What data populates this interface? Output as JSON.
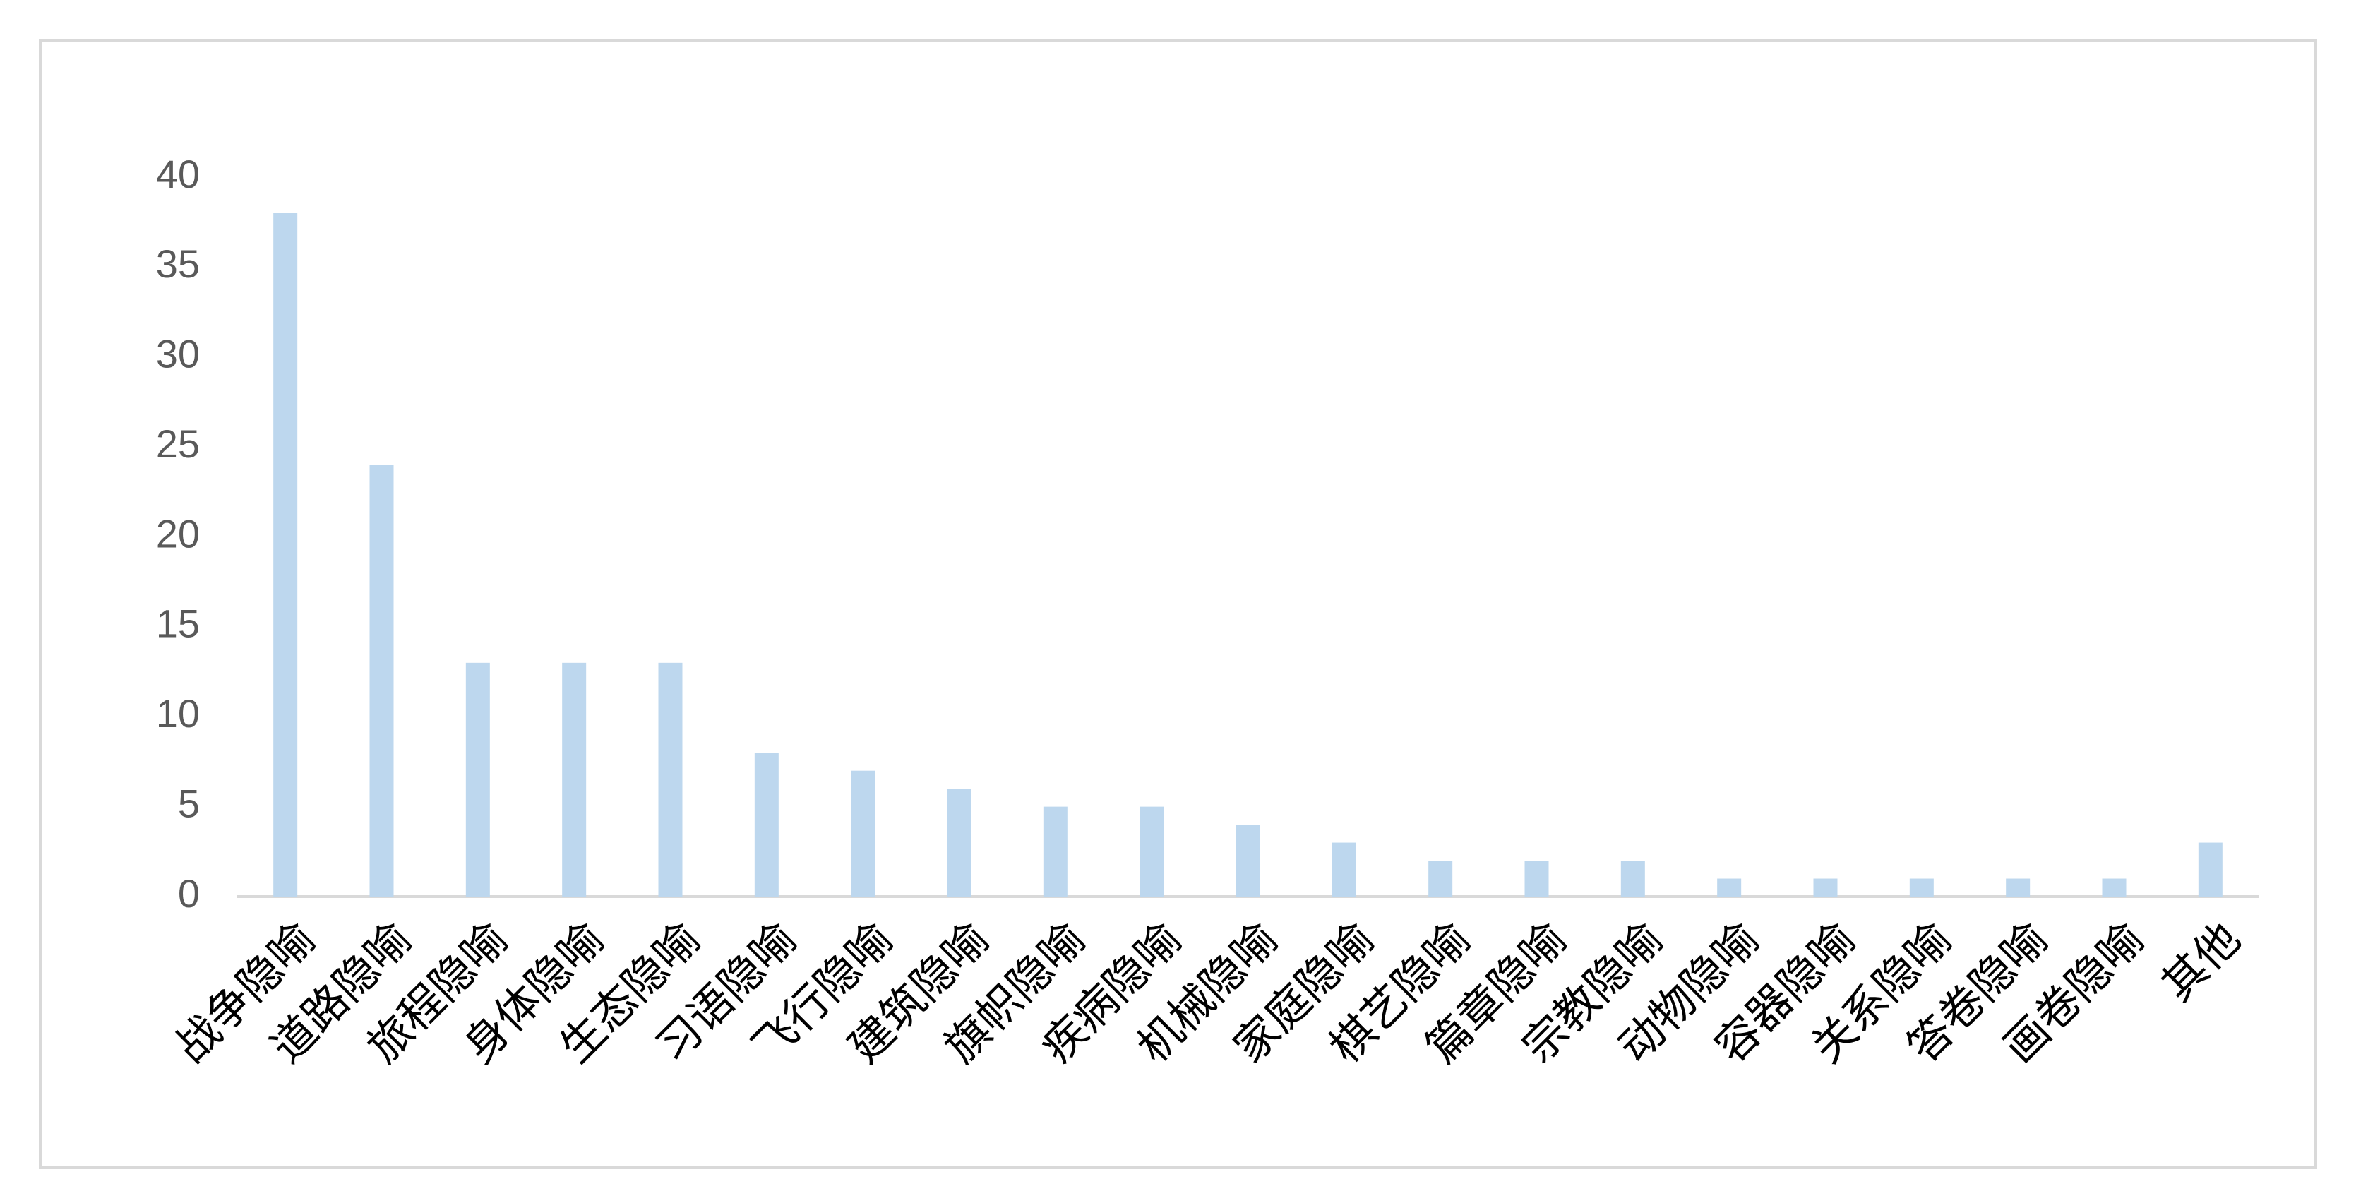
{
  "chart_data": {
    "type": "bar",
    "categories": [
      "战争隐喻",
      "道路隐喻",
      "旅程隐喻",
      "身体隐喻",
      "生态隐喻",
      "习语隐喻",
      "飞行隐喻",
      "建筑隐喻",
      "旗帜隐喻",
      "疾病隐喻",
      "机械隐喻",
      "家庭隐喻",
      "棋艺隐喻",
      "篇章隐喻",
      "宗教隐喻",
      "动物隐喻",
      "容器隐喻",
      "关系隐喻",
      "答卷隐喻",
      "画卷隐喻",
      "其他"
    ],
    "values": [
      38,
      24,
      13,
      13,
      13,
      8,
      7,
      6,
      5,
      5,
      4,
      3,
      2,
      2,
      2,
      1,
      1,
      1,
      1,
      1,
      3
    ],
    "color": "#bdd7ee",
    "ylim": [
      0,
      40
    ],
    "yticks": [
      0,
      5,
      10,
      15,
      20,
      25,
      30,
      35,
      40
    ],
    "grid": false
  }
}
